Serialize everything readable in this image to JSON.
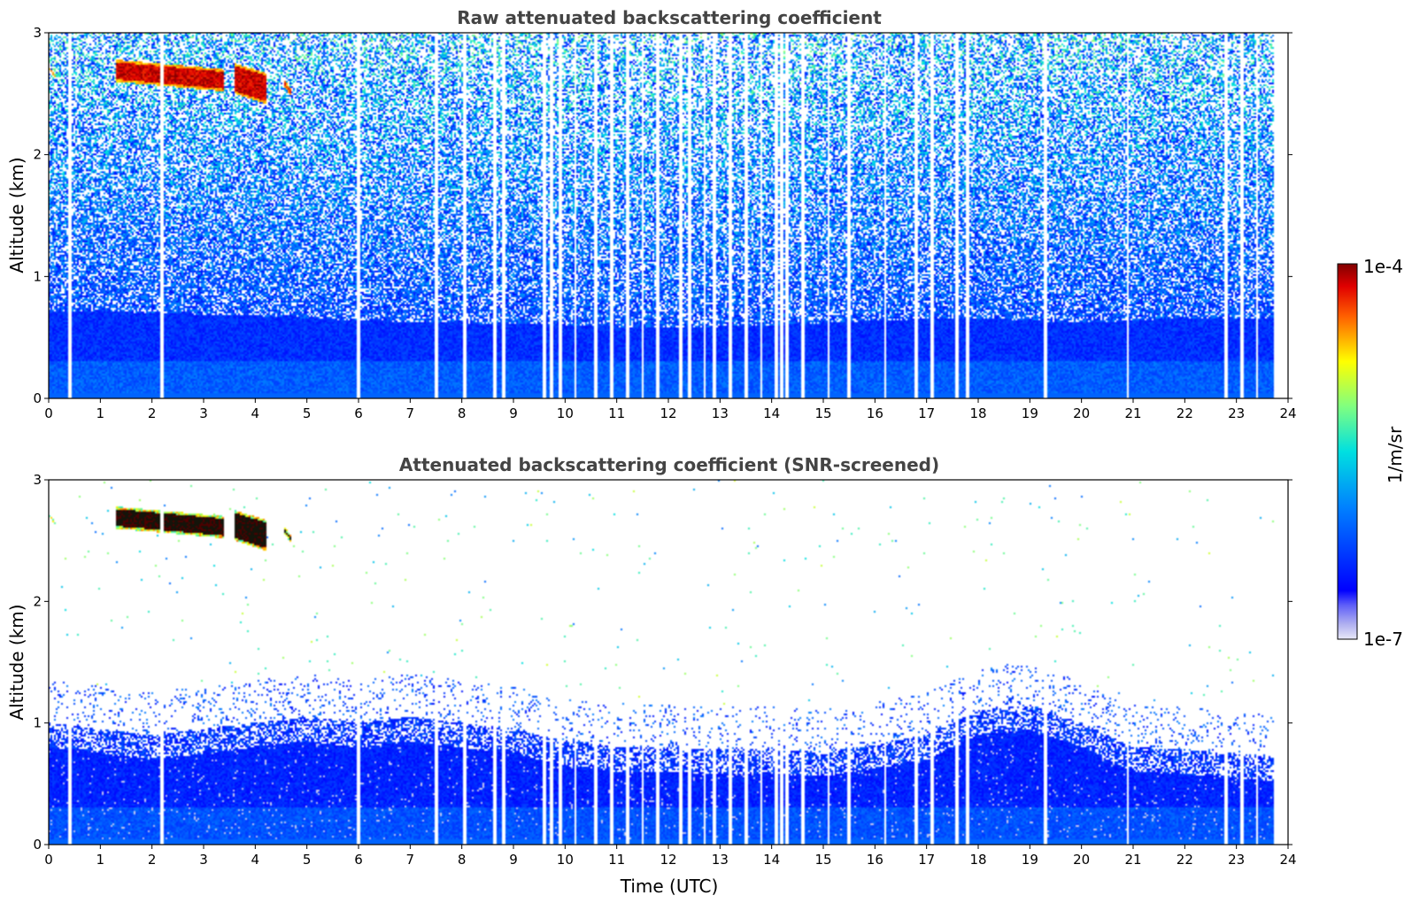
{
  "colors": {
    "jet_low": "#0000ff",
    "jet_mid": "#00ffff",
    "jet_high": "#800000",
    "panel_bg": "#ffffff",
    "title_text": "#444444"
  },
  "colorbar": {
    "label": "1/m/sr",
    "max_label": "1e-4",
    "min_label": "1e-7",
    "scale": "log",
    "range": [
      1e-07,
      0.0001
    ]
  },
  "chart_data": [
    {
      "type": "heatmap",
      "title": "Raw attenuated backscattering coefficient",
      "xlabel": "",
      "ylabel": "Altitude (km)",
      "xlim": [
        0,
        24
      ],
      "ylim": [
        0,
        3
      ],
      "x_ticks": [
        "0",
        "1",
        "2",
        "3",
        "4",
        "5",
        "6",
        "7",
        "8",
        "9",
        "10",
        "11",
        "12",
        "13",
        "14",
        "15",
        "16",
        "17",
        "18",
        "19",
        "20",
        "21",
        "22",
        "23",
        "24"
      ],
      "y_ticks": [
        "0",
        "1",
        "2",
        "3"
      ],
      "noise_level": "high",
      "boundary_layer_top_km": [
        [
          0,
          0.72
        ],
        [
          2,
          0.7
        ],
        [
          4,
          0.68
        ],
        [
          6,
          0.64
        ],
        [
          8,
          0.62
        ],
        [
          10,
          0.6
        ],
        [
          12,
          0.58
        ],
        [
          14,
          0.6
        ],
        [
          16,
          0.64
        ],
        [
          18,
          0.66
        ],
        [
          20,
          0.62
        ],
        [
          22,
          0.66
        ],
        [
          23.8,
          0.66
        ]
      ],
      "cloud_segments": [
        {
          "x_start": 0.0,
          "x_end": 0.15,
          "alt_top_km": 2.72,
          "alt_bottom_km": 2.62
        },
        {
          "x_start": 1.3,
          "x_end": 3.4,
          "alt_top_km": 2.78,
          "alt_bottom_km": 2.52
        },
        {
          "x_start": 3.6,
          "x_end": 4.2,
          "alt_top_km": 2.75,
          "alt_bottom_km": 2.42
        },
        {
          "x_start": 4.55,
          "x_end": 4.7,
          "alt_top_km": 2.62,
          "alt_bottom_km": 2.48
        }
      ],
      "data_gaps_hours": [
        0.42,
        2.2,
        6.0,
        7.5,
        8.05,
        8.65,
        8.8,
        9.6,
        9.75,
        9.9,
        10.2,
        10.6,
        10.9,
        11.2,
        11.5,
        11.8,
        12.25,
        12.4,
        12.7,
        12.9,
        13.2,
        13.5,
        13.8,
        14.1,
        14.2,
        14.3,
        14.6,
        15.1,
        15.5,
        16.2,
        16.8,
        17.1,
        17.6,
        17.8,
        19.3,
        20.9,
        22.8,
        23.1,
        23.4,
        23.75
      ],
      "data_end_hour": 23.8
    },
    {
      "type": "heatmap",
      "title": "Attenuated backscattering coefficient (SNR-screened)",
      "xlabel": "Time (UTC)",
      "ylabel": "Altitude (km)",
      "xlim": [
        0,
        24
      ],
      "ylim": [
        0,
        3
      ],
      "x_ticks": [
        "0",
        "1",
        "2",
        "3",
        "4",
        "5",
        "6",
        "7",
        "8",
        "9",
        "10",
        "11",
        "12",
        "13",
        "14",
        "15",
        "16",
        "17",
        "18",
        "19",
        "20",
        "21",
        "22",
        "23",
        "24"
      ],
      "y_ticks": [
        "0",
        "1",
        "2",
        "3"
      ],
      "noise_level": "screened",
      "boundary_layer_top_km": [
        [
          0,
          1.0
        ],
        [
          1,
          0.95
        ],
        [
          2,
          0.9
        ],
        [
          3,
          0.95
        ],
        [
          4,
          1.0
        ],
        [
          5,
          1.05
        ],
        [
          6,
          1.0
        ],
        [
          7,
          1.05
        ],
        [
          8,
          1.0
        ],
        [
          9,
          0.95
        ],
        [
          10,
          0.85
        ],
        [
          11,
          0.8
        ],
        [
          12,
          0.8
        ],
        [
          13,
          0.78
        ],
        [
          14,
          0.78
        ],
        [
          15,
          0.76
        ],
        [
          16,
          0.82
        ],
        [
          17,
          0.9
        ],
        [
          18,
          1.1
        ],
        [
          19,
          1.15
        ],
        [
          20,
          1.0
        ],
        [
          21,
          0.8
        ],
        [
          22,
          0.78
        ],
        [
          23,
          0.75
        ],
        [
          23.8,
          0.72
        ]
      ],
      "cloud_segments": [
        {
          "x_start": 0.0,
          "x_end": 0.15,
          "alt_top_km": 2.72,
          "alt_bottom_km": 2.62
        },
        {
          "x_start": 1.3,
          "x_end": 3.4,
          "alt_top_km": 2.78,
          "alt_bottom_km": 2.52
        },
        {
          "x_start": 3.6,
          "x_end": 4.2,
          "alt_top_km": 2.75,
          "alt_bottom_km": 2.42
        },
        {
          "x_start": 4.55,
          "x_end": 4.7,
          "alt_top_km": 2.62,
          "alt_bottom_km": 2.48
        }
      ],
      "data_gaps_hours": [
        0.42,
        2.2,
        6.0,
        7.5,
        8.05,
        8.65,
        8.8,
        9.6,
        9.75,
        9.9,
        10.2,
        10.6,
        10.9,
        11.2,
        11.5,
        11.8,
        12.25,
        12.4,
        12.7,
        12.9,
        13.2,
        13.5,
        13.8,
        14.1,
        14.2,
        14.3,
        14.6,
        15.1,
        15.5,
        16.2,
        16.8,
        17.1,
        17.6,
        17.8,
        19.3,
        20.9,
        22.8,
        23.1,
        23.4,
        23.75
      ],
      "data_end_hour": 23.8
    }
  ]
}
